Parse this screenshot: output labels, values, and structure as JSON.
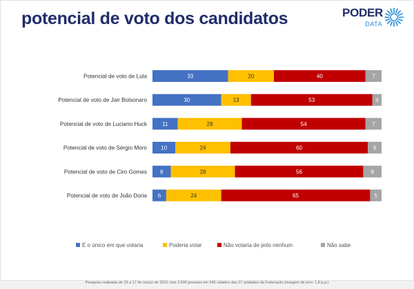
{
  "header": {
    "title": "potencial de voto dos candidatos",
    "logo_word": "PODER",
    "logo_sub": "DATA",
    "logo_icon": "sunburst-logo-icon"
  },
  "colors": {
    "title": "#1f2d6b",
    "only_vote": "#4472c4",
    "could_vote": "#ffc000",
    "would_not": "#c00000",
    "dont_know": "#a5a5a5"
  },
  "chart_data": {
    "type": "bar",
    "orientation": "horizontal",
    "stacked": true,
    "categories": [
      "Potencial de voto de Lula",
      "Potencial de voto de Jair Bolsonaro",
      "Potencial de voto de Luciano Huck",
      "Potencial de voto de Sérgio Moro",
      "Potencial de voto de Ciro Gomes",
      "Potencial de voto de João Doria"
    ],
    "series": [
      {
        "name": "É o único em que votaria",
        "color": "#4472c4",
        "label_color": "#ffffff",
        "values": [
          33,
          30,
          11,
          10,
          8,
          6
        ]
      },
      {
        "name": "Poderia votar",
        "color": "#ffc000",
        "label_color": "#333333",
        "values": [
          20,
          13,
          28,
          24,
          28,
          24
        ]
      },
      {
        "name": "Não votaria de jeito nenhum",
        "color": "#c00000",
        "label_color": "#ffffff",
        "values": [
          40,
          53,
          54,
          60,
          56,
          65
        ]
      },
      {
        "name": "Não sabe",
        "color": "#a5a5a5",
        "label_color": "#ffffff",
        "values": [
          7,
          4,
          7,
          6,
          8,
          5
        ]
      }
    ],
    "xlim": [
      0,
      100
    ],
    "grid": false,
    "legend": "bottom",
    "title": "potencial de voto dos candidatos"
  },
  "footnote": "Pesquisa realizada de 15 a 17 de março de 2021 com 3.500 pessoas em 545 cidades das 27 unidades da Federação (margem de erro: 1,8 p.p.)"
}
